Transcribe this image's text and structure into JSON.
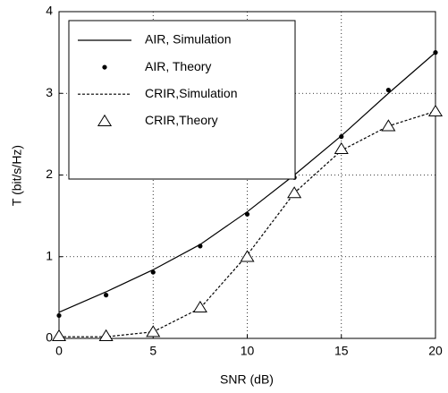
{
  "chart_data": {
    "type": "line",
    "xlabel": "SNR (dB)",
    "ylabel": "T (bit/s/Hz)",
    "x": [
      0,
      2.5,
      5,
      7.5,
      10,
      12.5,
      15,
      17.5,
      20
    ],
    "series": [
      {
        "name": "AIR, Simulation",
        "color": "#000000",
        "line": "solid",
        "marker": null,
        "values": [
          0.32,
          0.57,
          0.84,
          1.15,
          1.55,
          2.0,
          2.48,
          3.0,
          3.5
        ]
      },
      {
        "name": "AIR, Theory",
        "color": "#000000",
        "line": null,
        "marker": "dot",
        "values": [
          0.28,
          0.53,
          0.81,
          1.13,
          1.52,
          1.97,
          2.47,
          3.04,
          3.5
        ]
      },
      {
        "name": "CRIR,Simulation",
        "color": "#000000",
        "line": "dashed",
        "marker": null,
        "values": [
          0.02,
          0.02,
          0.08,
          0.37,
          1.02,
          1.78,
          2.3,
          2.6,
          2.78
        ]
      },
      {
        "name": "CRIR,Theory",
        "color": "#000000",
        "line": null,
        "marker": "triangle",
        "values": [
          0.03,
          0.03,
          0.08,
          0.38,
          1.0,
          1.78,
          2.32,
          2.6,
          2.78
        ]
      }
    ],
    "xlim": [
      0,
      20
    ],
    "xticks": [
      0,
      5,
      10,
      15,
      20
    ],
    "ylim": [
      0,
      4
    ],
    "yticks": [
      0,
      1,
      2,
      3,
      4
    ],
    "grid": true,
    "legend": "upper left"
  }
}
